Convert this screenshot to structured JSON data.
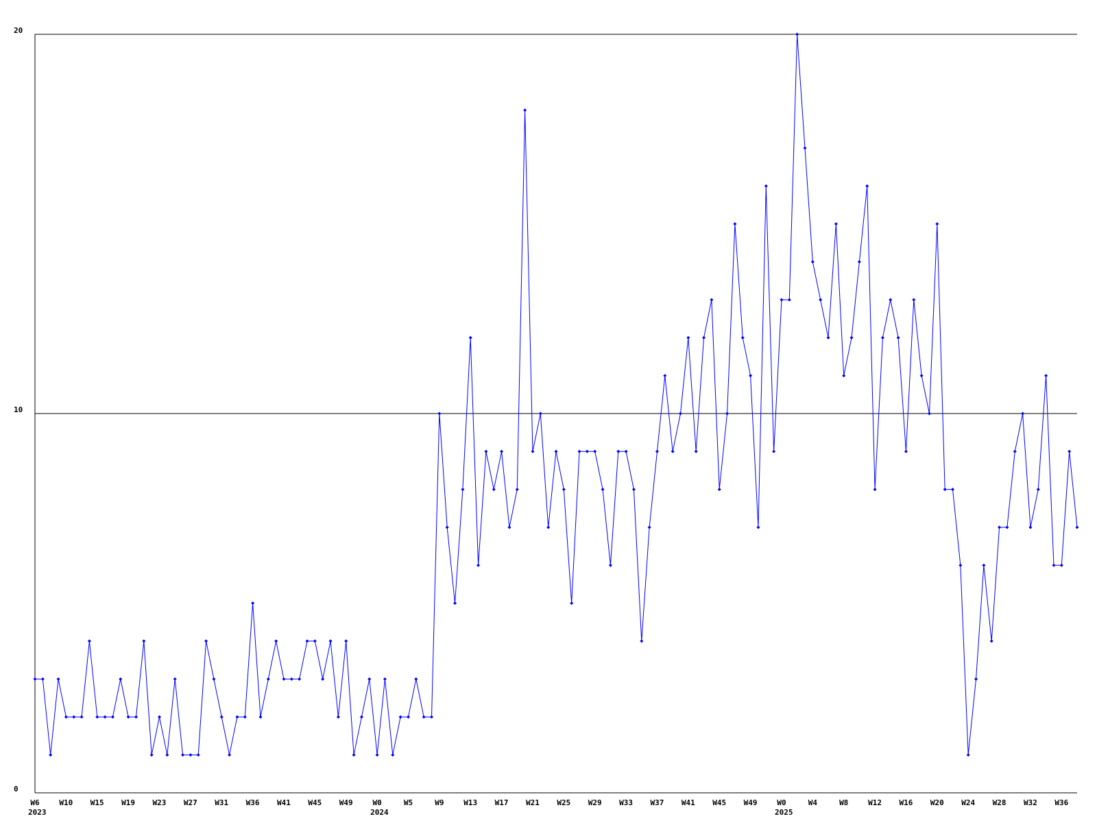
{
  "chart_data": {
    "type": "line",
    "categories": [
      "W6",
      null,
      null,
      null,
      "W10",
      null,
      null,
      null,
      "W15",
      null,
      null,
      null,
      "W19",
      null,
      null,
      null,
      "W23",
      null,
      null,
      null,
      "W27",
      null,
      null,
      null,
      "W31",
      null,
      null,
      null,
      "W36",
      null,
      null,
      null,
      "W41",
      null,
      null,
      null,
      "W45",
      null,
      null,
      null,
      "W49",
      null,
      null,
      null,
      "W0",
      null,
      null,
      null,
      "W5",
      null,
      null,
      null,
      "W9",
      null,
      null,
      null,
      "W13",
      null,
      null,
      null,
      "W17",
      null,
      null,
      null,
      "W21",
      null,
      null,
      null,
      "W25",
      null,
      null,
      null,
      "W29",
      null,
      null,
      null,
      "W33",
      null,
      null,
      null,
      "W37",
      null,
      null,
      null,
      "W41",
      null,
      null,
      null,
      "W45",
      null,
      null,
      null,
      "W49",
      null,
      null,
      null,
      "W0",
      null,
      null,
      null,
      "W4",
      null,
      null,
      null,
      "W8",
      null,
      null,
      null,
      "W12",
      null,
      null,
      null,
      "W16",
      null,
      null,
      null,
      "W20",
      null,
      null,
      null,
      "W24",
      null,
      null,
      null,
      "W28",
      null,
      null,
      null,
      "W32",
      null,
      null,
      null,
      "W36",
      null,
      null
    ],
    "category_years": [
      "2023",
      null,
      null,
      null,
      null,
      null,
      null,
      null,
      null,
      null,
      null,
      null,
      null,
      null,
      null,
      null,
      null,
      null,
      null,
      null,
      null,
      null,
      null,
      null,
      null,
      null,
      null,
      null,
      null,
      null,
      null,
      null,
      null,
      null,
      null,
      null,
      null,
      null,
      null,
      null,
      null,
      null,
      null,
      null,
      "2024",
      null,
      null,
      null,
      null,
      null,
      null,
      null,
      null,
      null,
      null,
      null,
      null,
      null,
      null,
      null,
      null,
      null,
      null,
      null,
      null,
      null,
      null,
      null,
      null,
      null,
      null,
      null,
      null,
      null,
      null,
      null,
      null,
      null,
      null,
      null,
      null,
      null,
      null,
      null,
      null,
      null,
      null,
      null,
      null,
      null,
      null,
      null,
      null,
      null,
      null,
      null,
      "2025",
      null,
      null,
      null,
      null,
      null,
      null,
      null,
      null,
      null,
      null,
      null,
      null,
      null,
      null,
      null,
      null,
      null,
      null,
      null,
      null,
      null,
      null,
      null,
      null,
      null,
      null,
      null,
      null,
      null,
      null,
      null,
      null,
      null,
      null,
      null,
      null,
      null
    ],
    "series": [
      {
        "color": "#0000ff",
        "values": [
          3,
          3,
          1,
          3,
          2,
          2,
          2,
          4,
          2,
          2,
          2,
          3,
          2,
          2,
          4,
          1,
          2,
          1,
          3,
          1,
          1,
          1,
          4,
          3,
          2,
          1,
          2,
          2,
          5,
          2,
          3,
          4,
          3,
          3,
          3,
          4,
          4,
          3,
          4,
          2,
          4,
          1,
          2,
          3,
          1,
          3,
          1,
          2,
          2,
          3,
          2,
          2,
          10,
          7,
          5,
          8,
          12,
          6,
          9,
          8,
          9,
          7,
          8,
          18,
          9,
          10,
          7,
          9,
          8,
          5,
          9,
          9,
          9,
          8,
          6,
          9,
          9,
          8,
          4,
          7,
          9,
          11,
          9,
          10,
          12,
          9,
          12,
          13,
          8,
          10,
          15,
          12,
          11,
          7,
          16,
          9,
          13,
          13,
          20,
          17,
          14,
          13,
          12,
          15,
          11,
          12,
          14,
          16,
          8,
          12,
          13,
          12,
          9,
          13,
          11,
          10,
          15,
          8,
          8,
          6,
          1,
          3,
          6,
          4,
          7,
          7,
          9,
          10,
          7,
          8,
          11,
          6,
          6,
          9,
          7
        ]
      }
    ],
    "ylim": [
      0,
      20
    ],
    "yticks": [
      0,
      10,
      20
    ],
    "grid": true
  }
}
